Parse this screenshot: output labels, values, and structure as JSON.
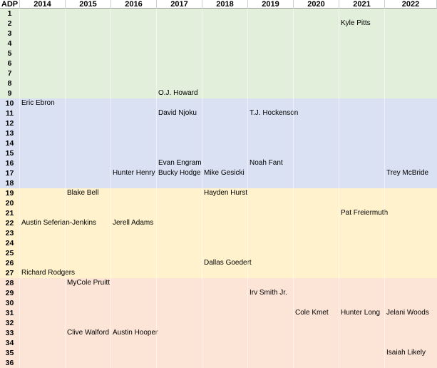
{
  "headers": [
    "ADP",
    "2014",
    "2015",
    "2016",
    "2017",
    "2018",
    "2019",
    "2020",
    "2021",
    "2022"
  ],
  "colors": {
    "tier1": "#e2efda",
    "tier2": "#d9e1f2",
    "tier3": "#fff2cc",
    "tier4": "#fce4d6"
  },
  "rows": [
    {
      "adp": "1",
      "tier": 1,
      "players": [
        "",
        "",
        "",
        "",
        "",
        "",
        "",
        "",
        ""
      ]
    },
    {
      "adp": "2",
      "tier": 1,
      "players": [
        "",
        "",
        "",
        "",
        "",
        "",
        "",
        "Kyle Pitts",
        ""
      ]
    },
    {
      "adp": "3",
      "tier": 1,
      "players": [
        "",
        "",
        "",
        "",
        "",
        "",
        "",
        "",
        ""
      ]
    },
    {
      "adp": "4",
      "tier": 1,
      "players": [
        "",
        "",
        "",
        "",
        "",
        "",
        "",
        "",
        ""
      ]
    },
    {
      "adp": "5",
      "tier": 1,
      "players": [
        "",
        "",
        "",
        "",
        "",
        "",
        "",
        "",
        ""
      ]
    },
    {
      "adp": "6",
      "tier": 1,
      "players": [
        "",
        "",
        "",
        "",
        "",
        "",
        "",
        "",
        ""
      ]
    },
    {
      "adp": "7",
      "tier": 1,
      "players": [
        "",
        "",
        "",
        "",
        "",
        "",
        "",
        "",
        ""
      ]
    },
    {
      "adp": "8",
      "tier": 1,
      "players": [
        "",
        "",
        "",
        "",
        "",
        "",
        "",
        "",
        ""
      ]
    },
    {
      "adp": "9",
      "tier": 1,
      "players": [
        "",
        "",
        "",
        "O.J. Howard",
        "",
        "",
        "",
        "",
        ""
      ]
    },
    {
      "adp": "10",
      "tier": 2,
      "players": [
        "Eric Ebron",
        "",
        "",
        "",
        "",
        "",
        "",
        "",
        ""
      ]
    },
    {
      "adp": "11",
      "tier": 2,
      "players": [
        "",
        "",
        "",
        "David Njoku",
        "",
        "T.J. Hockenson",
        "",
        "",
        ""
      ]
    },
    {
      "adp": "12",
      "tier": 2,
      "players": [
        "",
        "",
        "",
        "",
        "",
        "",
        "",
        "",
        ""
      ]
    },
    {
      "adp": "13",
      "tier": 2,
      "players": [
        "",
        "",
        "",
        "",
        "",
        "",
        "",
        "",
        ""
      ]
    },
    {
      "adp": "14",
      "tier": 2,
      "players": [
        "",
        "",
        "",
        "",
        "",
        "",
        "",
        "",
        ""
      ]
    },
    {
      "adp": "15",
      "tier": 2,
      "players": [
        "",
        "",
        "",
        "",
        "",
        "",
        "",
        "",
        ""
      ]
    },
    {
      "adp": "16",
      "tier": 2,
      "players": [
        "",
        "",
        "",
        "Evan Engram",
        "",
        "Noah Fant",
        "",
        "",
        ""
      ]
    },
    {
      "adp": "17",
      "tier": 2,
      "players": [
        "",
        "",
        "Hunter Henry",
        "Bucky Hodge",
        "Mike Gesicki",
        "",
        "",
        "",
        "Trey McBride"
      ]
    },
    {
      "adp": "18",
      "tier": 2,
      "players": [
        "",
        "",
        "",
        "",
        "",
        "",
        "",
        "",
        ""
      ]
    },
    {
      "adp": "19",
      "tier": 3,
      "players": [
        "",
        "Blake Bell",
        "",
        "",
        "Hayden Hurst",
        "",
        "",
        "",
        ""
      ]
    },
    {
      "adp": "20",
      "tier": 3,
      "players": [
        "",
        "",
        "",
        "",
        "",
        "",
        "",
        "",
        ""
      ]
    },
    {
      "adp": "21",
      "tier": 3,
      "players": [
        "",
        "",
        "",
        "",
        "",
        "",
        "",
        "Pat Freiermuth",
        ""
      ]
    },
    {
      "adp": "22",
      "tier": 3,
      "players": [
        "Austin Seferian-Jenkins",
        "",
        "Jerell Adams",
        "",
        "",
        "",
        "",
        "",
        ""
      ]
    },
    {
      "adp": "23",
      "tier": 3,
      "players": [
        "",
        "",
        "",
        "",
        "",
        "",
        "",
        "",
        ""
      ]
    },
    {
      "adp": "24",
      "tier": 3,
      "players": [
        "",
        "",
        "",
        "",
        "",
        "",
        "",
        "",
        ""
      ]
    },
    {
      "adp": "25",
      "tier": 3,
      "players": [
        "",
        "",
        "",
        "",
        "",
        "",
        "",
        "",
        ""
      ]
    },
    {
      "adp": "26",
      "tier": 3,
      "players": [
        "",
        "",
        "",
        "",
        "Dallas Goedert",
        "",
        "",
        "",
        ""
      ]
    },
    {
      "adp": "27",
      "tier": 3,
      "players": [
        "Richard Rodgers",
        "",
        "",
        "",
        "",
        "",
        "",
        "",
        ""
      ]
    },
    {
      "adp": "28",
      "tier": 4,
      "players": [
        "",
        "MyCole Pruitt",
        "",
        "",
        "",
        "",
        "",
        "",
        ""
      ]
    },
    {
      "adp": "29",
      "tier": 4,
      "players": [
        "",
        "",
        "",
        "",
        "",
        "Irv Smith Jr.",
        "",
        "",
        ""
      ]
    },
    {
      "adp": "30",
      "tier": 4,
      "players": [
        "",
        "",
        "",
        "",
        "",
        "",
        "",
        "",
        ""
      ]
    },
    {
      "adp": "31",
      "tier": 4,
      "players": [
        "",
        "",
        "",
        "",
        "",
        "",
        "Cole Kmet",
        "Hunter Long",
        "Jelani Woods"
      ]
    },
    {
      "adp": "32",
      "tier": 4,
      "players": [
        "",
        "",
        "",
        "",
        "",
        "",
        "",
        "",
        ""
      ]
    },
    {
      "adp": "33",
      "tier": 4,
      "players": [
        "",
        "Clive Walford",
        "Austin Hooper",
        "",
        "",
        "",
        "",
        "",
        ""
      ]
    },
    {
      "adp": "34",
      "tier": 4,
      "players": [
        "",
        "",
        "",
        "",
        "",
        "",
        "",
        "",
        ""
      ]
    },
    {
      "adp": "35",
      "tier": 4,
      "players": [
        "",
        "",
        "",
        "",
        "",
        "",
        "",
        "",
        "Isaiah Likely"
      ]
    },
    {
      "adp": "36",
      "tier": 4,
      "players": [
        "",
        "",
        "",
        "",
        "",
        "",
        "",
        "",
        ""
      ]
    }
  ]
}
